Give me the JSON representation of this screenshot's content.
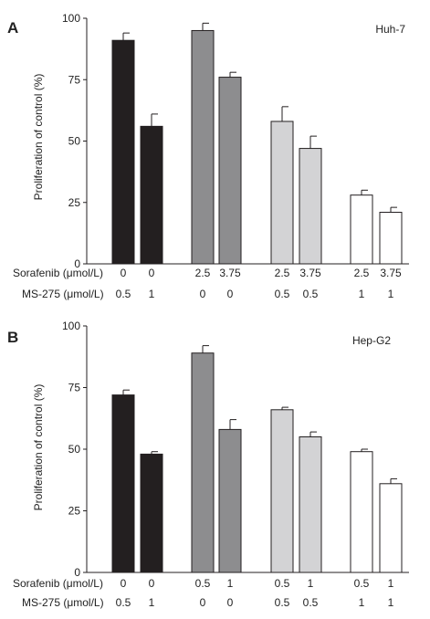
{
  "chart_data": [
    {
      "type": "bar",
      "panel_label": "A",
      "annotation": "Huh-7",
      "ylabel": "Proliferation of control (%)",
      "ylim": [
        0,
        100
      ],
      "yticks": [
        0,
        25,
        50,
        75,
        100
      ],
      "grid": false,
      "legend": "none",
      "condition_rows": [
        {
          "title": "Sorafenib (μmol/L)",
          "values": [
            "0",
            "0",
            "2.5",
            "3.75",
            "2.5",
            "3.75",
            "2.5",
            "3.75"
          ]
        },
        {
          "title": "MS-275 (μmol/L)",
          "values": [
            "0.5",
            "1",
            "0",
            "0",
            "0.5",
            "0.5",
            "1",
            "1"
          ]
        }
      ],
      "values": [
        91,
        56,
        95,
        76,
        58,
        47,
        28,
        21
      ],
      "errors": [
        3,
        5,
        3,
        2,
        6,
        5,
        2,
        2
      ],
      "group_index": [
        0,
        0,
        1,
        1,
        2,
        2,
        3,
        3
      ]
    },
    {
      "type": "bar",
      "panel_label": "B",
      "annotation": "Hep-G2",
      "ylabel": "Proliferation of control (%)",
      "ylim": [
        0,
        100
      ],
      "yticks": [
        0,
        25,
        50,
        75,
        100
      ],
      "grid": false,
      "legend": "none",
      "condition_rows": [
        {
          "title": "Sorafenib (μmol/L)",
          "values": [
            "0",
            "0",
            "0.5",
            "1",
            "0.5",
            "1",
            "0.5",
            "1"
          ]
        },
        {
          "title": "MS-275 (μmol/L)",
          "values": [
            "0.5",
            "1",
            "0",
            "0",
            "0.5",
            "0.5",
            "1",
            "1"
          ]
        }
      ],
      "values": [
        72,
        48,
        89,
        58,
        66,
        55,
        49,
        36
      ],
      "errors": [
        2,
        1,
        3,
        4,
        1,
        2,
        1,
        2
      ],
      "group_index": [
        0,
        0,
        1,
        1,
        2,
        2,
        3,
        3
      ]
    }
  ],
  "colors": {
    "group_fills": [
      "#231f20",
      "#8d8d8f",
      "#d3d3d5",
      "#ffffff"
    ],
    "outline": "#231f20"
  }
}
